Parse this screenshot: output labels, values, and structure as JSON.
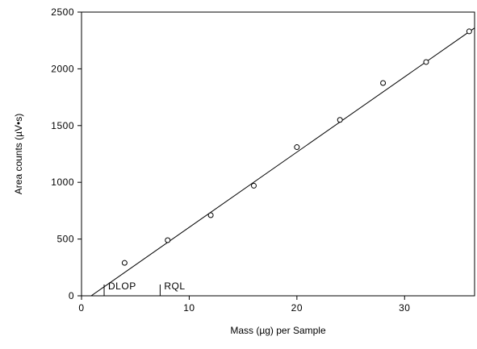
{
  "chart_data": {
    "type": "scatter",
    "xlabel": "Mass (µg) per Sample",
    "ylabel": "Area counts (µV•s)",
    "xlim": [
      0,
      36.5
    ],
    "ylim": [
      0,
      2500
    ],
    "x_ticks": [
      0,
      10,
      20,
      30
    ],
    "x_tick_labels": [
      "0",
      "10",
      "20",
      "30"
    ],
    "y_ticks": [
      0,
      500,
      1000,
      1500,
      2000,
      2500
    ],
    "y_tick_labels": [
      "0",
      "500",
      "1000",
      "1500",
      "2000",
      "2500"
    ],
    "grid": false,
    "series": [
      {
        "x": [
          4,
          8,
          12,
          16,
          20,
          24,
          28,
          32,
          36
        ],
        "y": [
          290,
          490,
          710,
          970,
          1310,
          1550,
          1875,
          2060,
          2330
        ]
      }
    ],
    "fit_line": {
      "x": [
        0.9,
        36.5
      ],
      "y": [
        0,
        2360
      ]
    },
    "annotations": [
      {
        "label": "DLOP",
        "x": 2.1
      },
      {
        "label": "RQL",
        "x": 7.3
      }
    ]
  }
}
